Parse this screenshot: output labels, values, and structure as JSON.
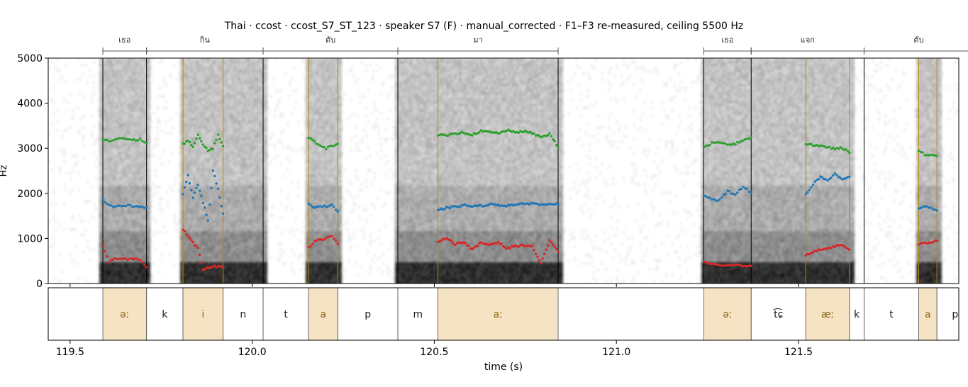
{
  "title": "Thai · ccost · ccost_S7_ST_123 · speaker S7 (F) · manual_corrected · F1–F3 re-measured, ceiling 5500 Hz",
  "colors": {
    "f1": "#d62728",
    "f2": "#1f77b4",
    "f3": "#2ca02c",
    "vowel_fill": "#f5e3c3",
    "vowel_text": "#8b6914",
    "vowel_boundary": "#b8860b"
  },
  "chart_data": {
    "type": "scatter",
    "title": "Thai · ccost · ccost_S7_ST_123 · speaker S7 (F) · manual_corrected · F1–F3 re-measured, ceiling 5500 Hz",
    "xlabel": "time (s)",
    "ylabel": "Hz",
    "xlim": [
      119.44,
      121.94
    ],
    "ylim": [
      0,
      5000
    ],
    "x_ticks": [
      119.5,
      120.0,
      120.5,
      121.0,
      121.5
    ],
    "x_tick_labels": [
      "119.5",
      "120.0",
      "120.5",
      "121.0",
      "121.5"
    ],
    "y_ticks": [
      0,
      1000,
      2000,
      3000,
      4000,
      5000
    ],
    "y_tick_labels": [
      "0",
      "1000",
      "2000",
      "3000",
      "4000",
      "5000"
    ],
    "background": "spectrogram (grayscale)",
    "words": [
      {
        "label": "เธอ",
        "start": 119.59,
        "end": 119.71
      },
      {
        "label": "กิน",
        "start": 119.71,
        "end": 120.03
      },
      {
        "label": "ตับ",
        "start": 120.03,
        "end": 120.4
      },
      {
        "label": "มา",
        "start": 120.4,
        "end": 120.84
      },
      {
        "label": "เธอ",
        "start": 121.24,
        "end": 121.37
      },
      {
        "label": "แจก",
        "start": 121.37,
        "end": 121.68
      },
      {
        "label": "ตับ",
        "start": 121.68,
        "end": 121.98
      }
    ],
    "phones": [
      {
        "label": "əː",
        "start": 119.59,
        "end": 119.71,
        "vowel": true
      },
      {
        "label": "k",
        "start": 119.71,
        "end": 119.81,
        "vowel": false
      },
      {
        "label": "i",
        "start": 119.81,
        "end": 119.92,
        "vowel": true
      },
      {
        "label": "n",
        "start": 119.92,
        "end": 120.03,
        "vowel": false
      },
      {
        "label": "t",
        "start": 120.03,
        "end": 120.155,
        "vowel": false
      },
      {
        "label": "a",
        "start": 120.155,
        "end": 120.235,
        "vowel": true
      },
      {
        "label": "p",
        "start": 120.235,
        "end": 120.4,
        "vowel": false
      },
      {
        "label": "m",
        "start": 120.4,
        "end": 120.51,
        "vowel": false
      },
      {
        "label": "aː",
        "start": 120.51,
        "end": 120.84,
        "vowel": true
      },
      {
        "label": "əː",
        "start": 121.24,
        "end": 121.37,
        "vowel": true
      },
      {
        "label": "t͡ɕ",
        "start": 121.37,
        "end": 121.52,
        "vowel": false
      },
      {
        "label": "æː",
        "start": 121.52,
        "end": 121.64,
        "vowel": true
      },
      {
        "label": "k",
        "start": 121.64,
        "end": 121.68,
        "vowel": false
      },
      {
        "label": "t",
        "start": 121.68,
        "end": 121.83,
        "vowel": false
      },
      {
        "label": "a",
        "start": 121.83,
        "end": 121.88,
        "vowel": true
      },
      {
        "label": "p",
        "start": 121.88,
        "end": 121.98,
        "vowel": false
      }
    ],
    "formant_tracks": [
      {
        "vowel": "əː",
        "start": 119.59,
        "end": 119.71,
        "F1": [
          820,
          480,
          550,
          560,
          540,
          550,
          520,
          360
        ],
        "F2": [
          1850,
          1720,
          1700,
          1720,
          1730,
          1710,
          1700,
          1680
        ],
        "F3": [
          3200,
          3150,
          3200,
          3230,
          3200,
          3180,
          3200,
          3100
        ]
      },
      {
        "vowel": "i",
        "start": 119.81,
        "end": 119.92,
        "F1": [
          1200,
          1050,
          900,
          800,
          300,
          340,
          370,
          380,
          360
        ],
        "F2": [
          2000,
          2400,
          1900,
          2200,
          1800,
          1400,
          2500,
          2100,
          1550
        ],
        "F3": [
          3100,
          3150,
          3050,
          3300,
          3100,
          2950,
          3000,
          3300,
          3050
        ]
      },
      {
        "vowel": "a",
        "start": 120.155,
        "end": 120.235,
        "F1": [
          800,
          920,
          980,
          1000,
          1050,
          880
        ],
        "F2": [
          1760,
          1700,
          1720,
          1710,
          1750,
          1600
        ],
        "F3": [
          3250,
          3150,
          3050,
          3000,
          3050,
          3100
        ]
      },
      {
        "vowel": "aː",
        "start": 120.51,
        "end": 120.84,
        "F1": [
          900,
          1020,
          870,
          930,
          750,
          900,
          860,
          920,
          780,
          830,
          850,
          820,
          450,
          950,
          700
        ],
        "F2": [
          1620,
          1680,
          1700,
          1740,
          1710,
          1720,
          1760,
          1740,
          1730,
          1750,
          1760,
          1790,
          1740,
          1780,
          1750
        ],
        "F3": [
          3300,
          3280,
          3320,
          3350,
          3300,
          3380,
          3360,
          3330,
          3400,
          3350,
          3380,
          3330,
          3250,
          3320,
          3020
        ]
      },
      {
        "vowel": "əː",
        "start": 121.24,
        "end": 121.37,
        "F1": [
          480,
          430,
          410,
          400,
          410,
          400,
          390
        ],
        "F2": [
          1960,
          1870,
          1850,
          2050,
          1980,
          2150,
          2020
        ],
        "F3": [
          3020,
          3110,
          3120,
          3080,
          3100,
          3180,
          3240
        ]
      },
      {
        "vowel": "æː",
        "start": 121.52,
        "end": 121.64,
        "F1": [
          620,
          700,
          760,
          790,
          820,
          860,
          750
        ],
        "F2": [
          1980,
          2200,
          2380,
          2270,
          2440,
          2320,
          2370
        ],
        "F3": [
          3100,
          3070,
          3040,
          3030,
          2980,
          3010,
          2900
        ]
      },
      {
        "vowel": "a",
        "start": 121.83,
        "end": 121.88,
        "F1": [
          860,
          900,
          920,
          950
        ],
        "F2": [
          1680,
          1700,
          1680,
          1620
        ],
        "F3": [
          2950,
          2860,
          2840,
          2830
        ]
      }
    ]
  }
}
